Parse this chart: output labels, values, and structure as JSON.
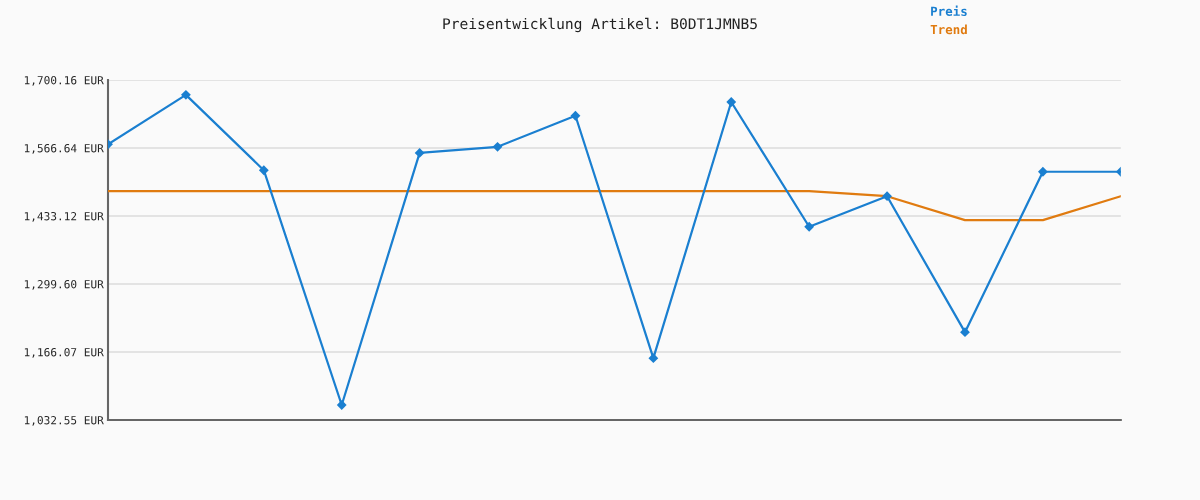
{
  "chart_data": {
    "type": "line",
    "title": "Preisentwicklung Artikel: B0DT1JMNB5",
    "categories": [
      null,
      null,
      null,
      null,
      null,
      null,
      null,
      null,
      null,
      null,
      null,
      null,
      null,
      null
    ],
    "series": [
      {
        "name": "Preis",
        "color": "#1a7fd0",
        "marker": "diamond",
        "values": [
          1574,
          1671,
          1523,
          1062,
          1557,
          1569,
          1630,
          1154,
          1657,
          1412,
          1472,
          1205,
          1520,
          1520
        ]
      },
      {
        "name": "Trend",
        "color": "#e07b10",
        "marker": "none",
        "values": [
          1482,
          1482,
          1482,
          1482,
          1482,
          1482,
          1482,
          1482,
          1482,
          1482,
          1472,
          1425,
          1425,
          1472
        ]
      }
    ],
    "ylim": [
      1032.55,
      1700.16
    ],
    "yticks": [
      {
        "value": 1032.55,
        "label": "1,032.55 EUR"
      },
      {
        "value": 1166.07,
        "label": "1,166.07 EUR"
      },
      {
        "value": 1299.6,
        "label": "1,299.60 EUR"
      },
      {
        "value": 1433.12,
        "label": "1,433.12 EUR"
      },
      {
        "value": 1566.64,
        "label": "1,566.64 EUR"
      },
      {
        "value": 1700.16,
        "label": "1,700.16 EUR"
      }
    ],
    "grid": "y",
    "legend": "top right",
    "tick_labels": "y"
  }
}
